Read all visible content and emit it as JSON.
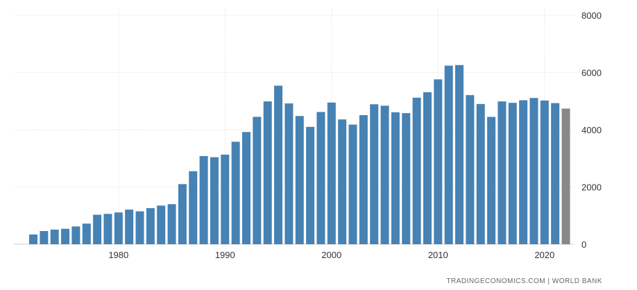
{
  "chart_data": {
    "type": "bar",
    "title": "",
    "xlabel": "",
    "ylabel": "",
    "x": [
      1972,
      1973,
      1974,
      1975,
      1976,
      1977,
      1978,
      1979,
      1980,
      1981,
      1982,
      1983,
      1984,
      1985,
      1986,
      1987,
      1988,
      1989,
      1990,
      1991,
      1992,
      1993,
      1994,
      1995,
      1996,
      1997,
      1998,
      1999,
      2000,
      2001,
      2002,
      2003,
      2004,
      2005,
      2006,
      2007,
      2008,
      2009,
      2010,
      2011,
      2012,
      2013,
      2014,
      2015,
      2016,
      2017,
      2018,
      2019,
      2020,
      2021,
      2022
    ],
    "values": [
      340,
      460,
      510,
      540,
      620,
      720,
      1030,
      1060,
      1110,
      1210,
      1150,
      1260,
      1350,
      1400,
      2100,
      2550,
      3080,
      3040,
      3130,
      3580,
      3920,
      4450,
      4990,
      5540,
      4920,
      4480,
      4100,
      4620,
      4950,
      4360,
      4180,
      4510,
      4890,
      4840,
      4610,
      4580,
      5120,
      5310,
      5760,
      6240,
      6260,
      5210,
      4900,
      4450,
      4990,
      4940,
      5030,
      5110,
      5020,
      4930,
      4740
    ],
    "highlight_last": true,
    "xticks": [
      "1980",
      "1990",
      "2000",
      "2010",
      "2020"
    ],
    "yticks": [
      "0",
      "2000",
      "4000",
      "6000",
      "8000"
    ],
    "ylim": [
      0,
      8000
    ],
    "grid": true,
    "colors": {
      "bar": "#4682b4",
      "bar_last": "#888888"
    }
  },
  "credit": "TRADINGECONOMICS.COM  |  WORLD BANK"
}
